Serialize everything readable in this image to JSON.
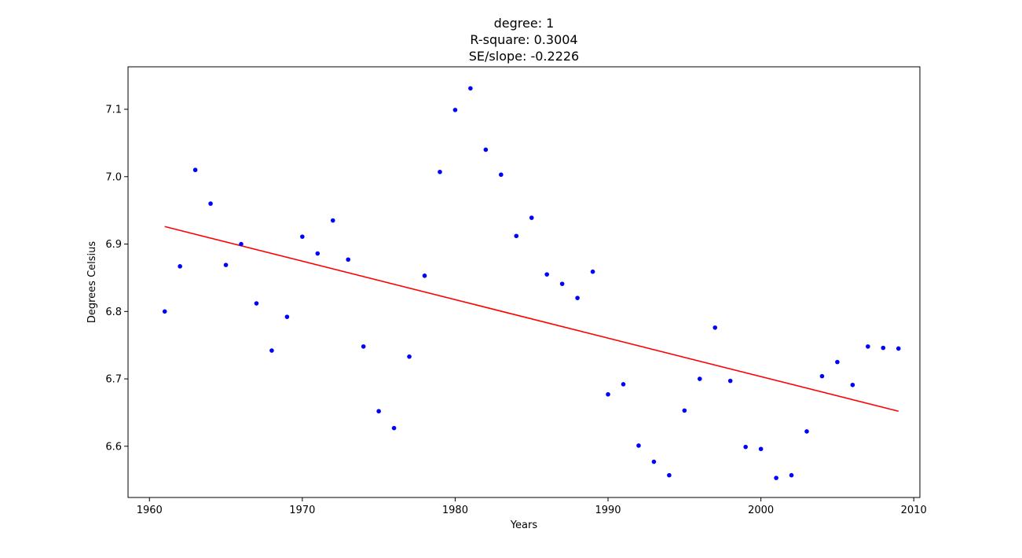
{
  "chart_data": {
    "type": "scatter",
    "title_lines": [
      "degree: 1",
      "R-square: 0.3004",
      "SE/slope: -0.2226"
    ],
    "xlabel": "Years",
    "ylabel": "Degrees Celsius",
    "xlim": [
      1958.6,
      2010.4
    ],
    "ylim": [
      6.524,
      7.163
    ],
    "xticks": [
      1960,
      1970,
      1980,
      1990,
      2000,
      2010
    ],
    "yticks": [
      6.6,
      6.7,
      6.8,
      6.9,
      7.0,
      7.1
    ],
    "ytick_labels": [
      "6.6",
      "6.7",
      "6.8",
      "6.9",
      "7.0",
      "7.1"
    ],
    "grid": false,
    "point_color": "#0000ff",
    "fit_color": "#ff0000",
    "x": [
      1961,
      1962,
      1963,
      1964,
      1965,
      1966,
      1967,
      1968,
      1969,
      1970,
      1971,
      1972,
      1973,
      1974,
      1975,
      1976,
      1977,
      1978,
      1979,
      1980,
      1981,
      1982,
      1983,
      1984,
      1985,
      1986,
      1987,
      1988,
      1989,
      1990,
      1991,
      1992,
      1993,
      1994,
      1995,
      1996,
      1997,
      1998,
      1999,
      2000,
      2001,
      2002,
      2003,
      2004,
      2005,
      2006,
      2007,
      2008,
      2009
    ],
    "y": [
      6.8,
      6.867,
      7.01,
      6.96,
      6.869,
      6.9,
      6.812,
      6.742,
      6.792,
      6.911,
      6.886,
      6.935,
      6.877,
      6.748,
      6.652,
      6.627,
      6.733,
      6.853,
      7.007,
      7.099,
      7.131,
      7.04,
      7.003,
      6.912,
      6.939,
      6.855,
      6.841,
      6.82,
      6.859,
      6.677,
      6.692,
      6.601,
      6.577,
      6.557,
      6.653,
      6.7,
      6.776,
      6.697,
      6.599,
      6.596,
      6.553,
      6.557,
      6.622,
      6.704,
      6.725,
      6.691,
      6.748,
      6.746,
      6.745
    ],
    "fit": {
      "x": [
        1961,
        2009
      ],
      "y": [
        6.926,
        6.652
      ]
    }
  }
}
